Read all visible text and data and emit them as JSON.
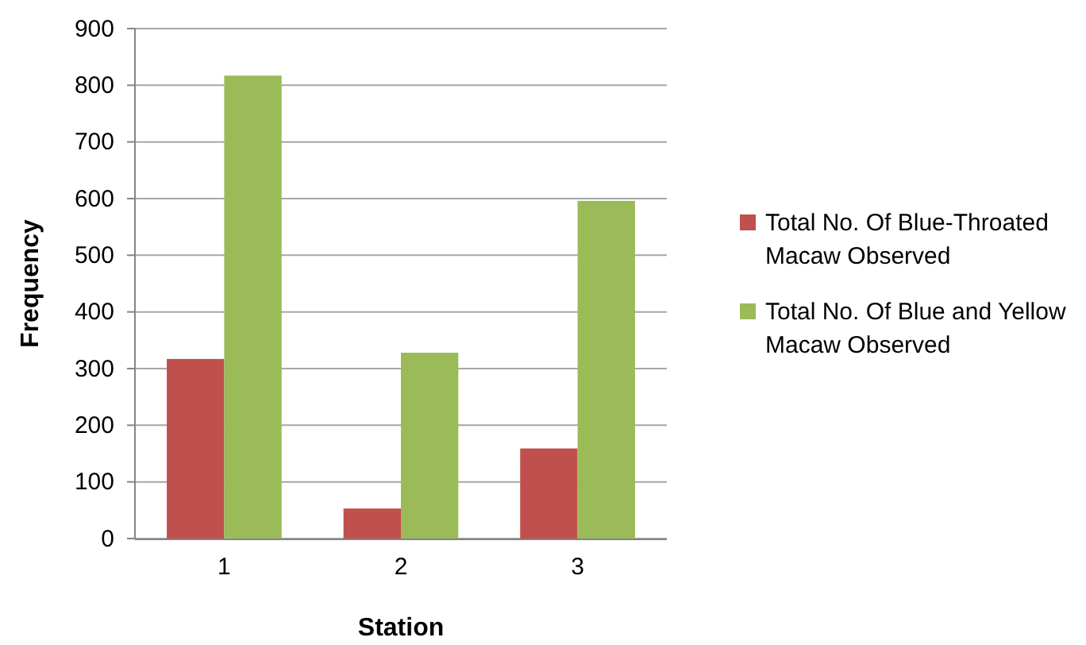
{
  "chart_data": {
    "type": "bar",
    "xlabel": "Station",
    "ylabel": "Frequency",
    "categories": [
      "1",
      "2",
      "3"
    ],
    "series": [
      {
        "name": "Total No. Of Blue-Throated Macaw Observed",
        "color": "#c0504d",
        "values": [
          317,
          53,
          159
        ]
      },
      {
        "name": "Total No. Of Blue and Yellow Macaw Observed",
        "color": "#9bbb59",
        "values": [
          817,
          328,
          596
        ]
      }
    ],
    "ylim": [
      0,
      900
    ],
    "yticks": [
      0,
      100,
      200,
      300,
      400,
      500,
      600,
      700,
      800,
      900
    ],
    "grid": "y",
    "legend": "right"
  }
}
